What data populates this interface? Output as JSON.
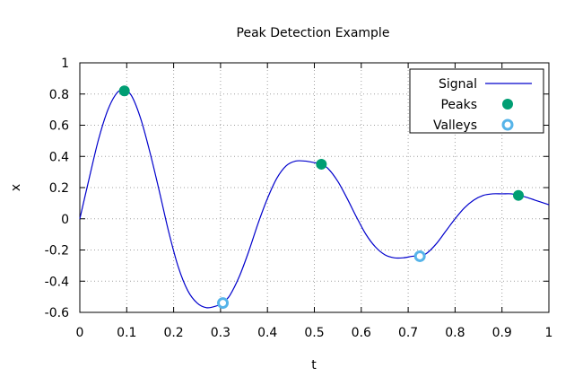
{
  "chart_data": {
    "type": "line",
    "title": "Peak Detection Example",
    "xlabel": "t",
    "ylabel": "x",
    "xlim": [
      0,
      1
    ],
    "ylim": [
      -0.6,
      1
    ],
    "xticks": [
      0,
      0.1,
      0.2,
      0.3,
      0.4,
      0.5,
      0.6,
      0.7,
      0.8,
      0.9,
      1
    ],
    "yticks": [
      -0.6,
      -0.4,
      -0.2,
      0,
      0.2,
      0.4,
      0.6,
      0.8,
      1
    ],
    "grid": true,
    "legend_position": "top-right",
    "series": [
      {
        "name": "Signal",
        "kind": "line",
        "color": "#0000cc",
        "x": [
          0.0,
          0.02,
          0.04,
          0.06,
          0.08,
          0.095,
          0.11,
          0.13,
          0.15,
          0.17,
          0.19,
          0.21,
          0.23,
          0.25,
          0.27,
          0.29,
          0.305,
          0.32,
          0.34,
          0.36,
          0.38,
          0.4,
          0.42,
          0.44,
          0.46,
          0.48,
          0.5,
          0.515,
          0.53,
          0.55,
          0.57,
          0.59,
          0.61,
          0.63,
          0.65,
          0.67,
          0.69,
          0.71,
          0.725,
          0.74,
          0.76,
          0.78,
          0.8,
          0.82,
          0.84,
          0.86,
          0.88,
          0.9,
          0.92,
          0.935,
          0.95,
          0.97,
          1.0
        ],
        "y": [
          0.0,
          0.26,
          0.51,
          0.7,
          0.81,
          0.82,
          0.79,
          0.64,
          0.42,
          0.17,
          -0.09,
          -0.31,
          -0.46,
          -0.54,
          -0.57,
          -0.56,
          -0.54,
          -0.49,
          -0.37,
          -0.21,
          -0.03,
          0.13,
          0.26,
          0.34,
          0.37,
          0.37,
          0.36,
          0.35,
          0.32,
          0.24,
          0.13,
          0.01,
          -0.1,
          -0.18,
          -0.23,
          -0.25,
          -0.25,
          -0.24,
          -0.24,
          -0.22,
          -0.16,
          -0.08,
          0.0,
          0.07,
          0.12,
          0.15,
          0.16,
          0.16,
          0.16,
          0.15,
          0.14,
          0.12,
          0.09
        ]
      },
      {
        "name": "Peaks",
        "kind": "marker-filled",
        "color": "#009e73",
        "x": [
          0.095,
          0.515,
          0.935
        ],
        "y": [
          0.82,
          0.35,
          0.15
        ]
      },
      {
        "name": "Valleys",
        "kind": "marker-hollow",
        "color": "#56b4e9",
        "x": [
          0.305,
          0.725
        ],
        "y": [
          -0.54,
          -0.24
        ]
      }
    ]
  }
}
